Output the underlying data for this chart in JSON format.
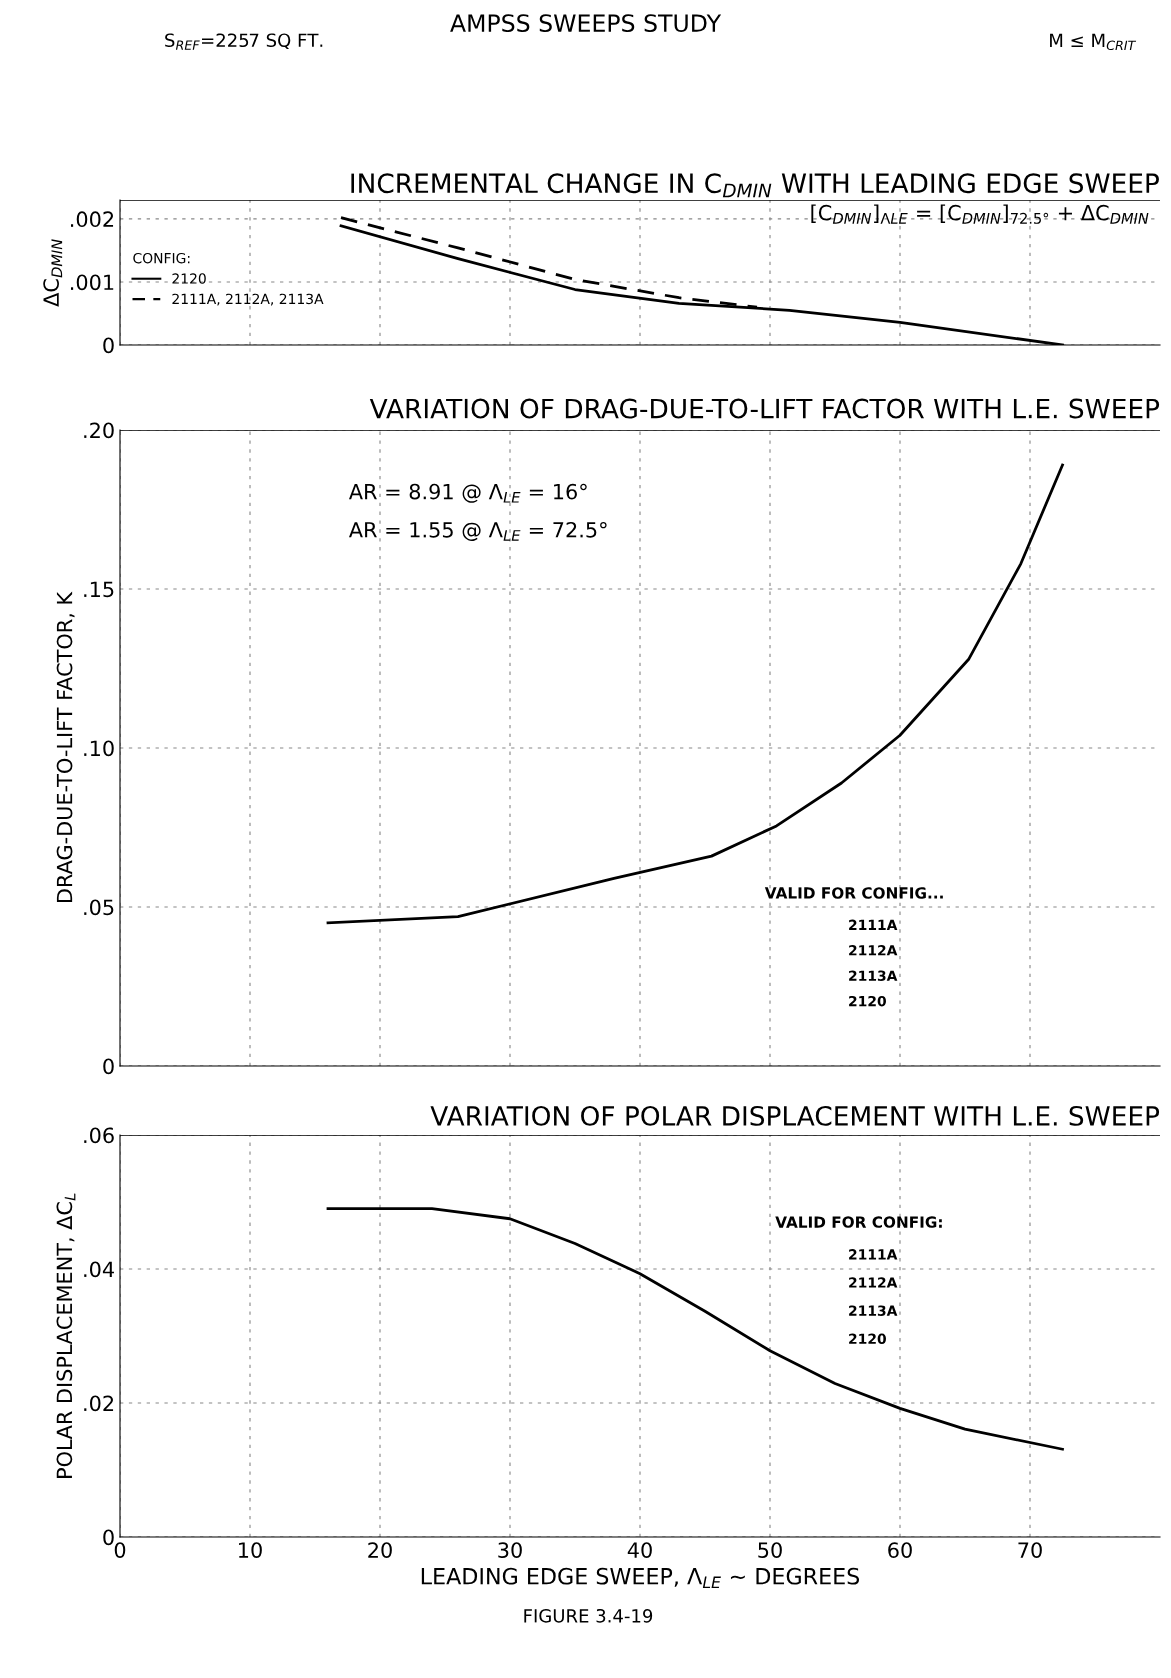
{
  "chart_data": [
    {
      "type": "line",
      "title": "INCREMENTAL CHANGE IN C$_{DMIN}$ WITH LEADING EDGE SWEEP",
      "ylabel": "ΔC$_{DMIN}$",
      "legend_title": "CONFIG:",
      "legend": "left",
      "annotations": [
        "AMPSS SWEEPS STUDY",
        "S$_{REF}$=2257 SQ FT.",
        "M ≤ M$_{CRIT}$",
        "[C$_{DMIN}$]$_{ΛLE}$ = [C$_{DMIN}$]$_{72.5°}$ + ΔC$_{DMIN}$"
      ],
      "xlim": [
        0,
        80
      ],
      "xticks": [
        0,
        10,
        20,
        30,
        40,
        50,
        60,
        70
      ],
      "ylim": [
        0,
        0.0023
      ],
      "yticks": [
        {
          "value": 0,
          "label": "0"
        },
        {
          "value": 0.001,
          "label": ".001"
        },
        {
          "value": 0.002,
          "label": ".002"
        }
      ],
      "tick_labels": "y",
      "grid": true,
      "series": [
        {
          "name": "2120",
          "color": "#000000",
          "line_style": "solid",
          "x": [
            17,
            26,
            35,
            43,
            51.5,
            60,
            72.5
          ],
          "values": [
            0.00189,
            0.00137,
            0.00088,
            0.00066,
            0.00055,
            0.00036,
            0
          ]
        },
        {
          "name": "2111A, 2112A, 2113A",
          "color": "#000000",
          "line_style": "dashed",
          "x": [
            17,
            26,
            35,
            43,
            49
          ],
          "values": [
            0.00202,
            0.00154,
            0.00104,
            0.00075,
            0.0006
          ]
        }
      ]
    },
    {
      "type": "line",
      "title": "VARIATION OF DRAG-DUE-TO-LIFT FACTOR WITH L.E. SWEEP",
      "ylabel": "DRAG-DUE-TO-LIFT FACTOR, K",
      "annotations": [
        "AR = 8.91 @ Λ$_{LE}$ = 16°",
        "AR = 1.55 @ Λ$_{LE}$ = 72.5°",
        "VALID FOR CONFIG...",
        "2111A",
        "2112A",
        "2113A",
        "2120"
      ],
      "xlim": [
        0,
        80
      ],
      "xticks": [
        0,
        10,
        20,
        30,
        40,
        50,
        60,
        70
      ],
      "ylim": [
        0,
        0.2
      ],
      "yticks": [
        {
          "value": 0,
          "label": "0"
        },
        {
          "value": 0.05,
          "label": ".05"
        },
        {
          "value": 0.1,
          "label": ".10"
        },
        {
          "value": 0.15,
          "label": ".15"
        },
        {
          "value": 0.2,
          "label": ".20"
        }
      ],
      "tick_labels": "y",
      "grid": true,
      "series": [
        {
          "color": "#000000",
          "x": [
            16,
            26,
            38,
            45.5,
            50.5,
            55.5,
            60,
            65.3,
            69.3,
            72.5
          ],
          "values": [
            0.045,
            0.047,
            0.059,
            0.066,
            0.0755,
            0.089,
            0.104,
            0.128,
            0.158,
            0.189
          ]
        }
      ]
    },
    {
      "type": "line",
      "title": "VARIATION OF POLAR DISPLACEMENT WITH L.E. SWEEP",
      "ylabel": "POLAR DISPLACEMENT, ΔC$_{L}$",
      "xlabel": "LEADING EDGE SWEEP, Λ$_{LE}$ ~ DEGREES",
      "annotations": [
        "VALID FOR CONFIG:",
        "2111A",
        "2112A",
        "2113A",
        "2120",
        "FIGURE 3.4-19"
      ],
      "xlim": [
        0,
        80
      ],
      "xticks": [
        0,
        10,
        20,
        30,
        40,
        50,
        60,
        70
      ],
      "ylim": [
        0,
        0.06
      ],
      "yticks": [
        {
          "value": 0,
          "label": "0"
        },
        {
          "value": 0.02,
          "label": ".02"
        },
        {
          "value": 0.04,
          "label": ".04"
        },
        {
          "value": 0.06,
          "label": ".06"
        }
      ],
      "grid": true,
      "series": [
        {
          "color": "#000000",
          "x": [
            16,
            24,
            30,
            35,
            40,
            45,
            50,
            55,
            60,
            65,
            72.5
          ],
          "values": [
            0.049,
            0.049,
            0.0475,
            0.0438,
            0.0393,
            0.0337,
            0.0278,
            0.0229,
            0.0192,
            0.0161,
            0.0131
          ]
        }
      ]
    }
  ]
}
